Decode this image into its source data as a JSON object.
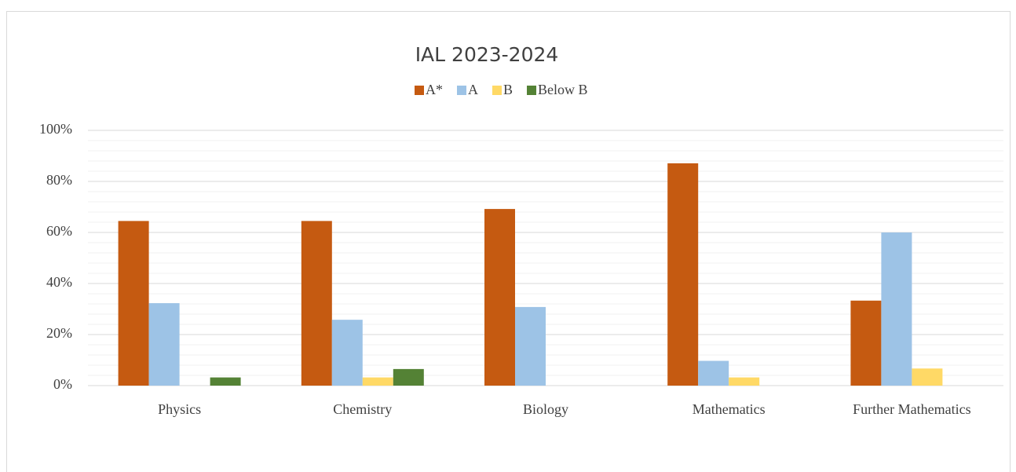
{
  "chart_data": {
    "type": "bar",
    "title": "IAL 2023-2024",
    "categories": [
      "Physics",
      "Chemistry",
      "Biology",
      "Mathematics",
      "Further Mathematics"
    ],
    "series": [
      {
        "name": "A*",
        "color": "#c55a11",
        "values": [
          64.5,
          64.5,
          69.2,
          87.1,
          33.3
        ]
      },
      {
        "name": "A",
        "color": "#9dc3e6",
        "values": [
          32.3,
          25.8,
          30.8,
          9.7,
          60
        ]
      },
      {
        "name": "B",
        "color": "#ffd966",
        "values": [
          0,
          3.2,
          0,
          3.2,
          6.7
        ]
      },
      {
        "name": "Below B",
        "color": "#548235",
        "values": [
          3.2,
          6.5,
          0,
          0,
          0
        ]
      }
    ],
    "ylim": [
      0,
      100
    ],
    "yticks": [
      {
        "value": 0,
        "label": "0%"
      },
      {
        "value": 20,
        "label": "20%"
      },
      {
        "value": 40,
        "label": "40%"
      },
      {
        "value": 60,
        "label": "60%"
      },
      {
        "value": 80,
        "label": "80%"
      },
      {
        "value": 100,
        "label": "100%"
      }
    ],
    "minor_yticks": [
      4,
      8,
      12,
      16,
      24,
      28,
      32,
      36,
      44,
      48,
      52,
      56,
      64,
      68,
      72,
      76,
      84,
      88,
      92,
      96
    ],
    "grid": true,
    "legend": "top"
  }
}
